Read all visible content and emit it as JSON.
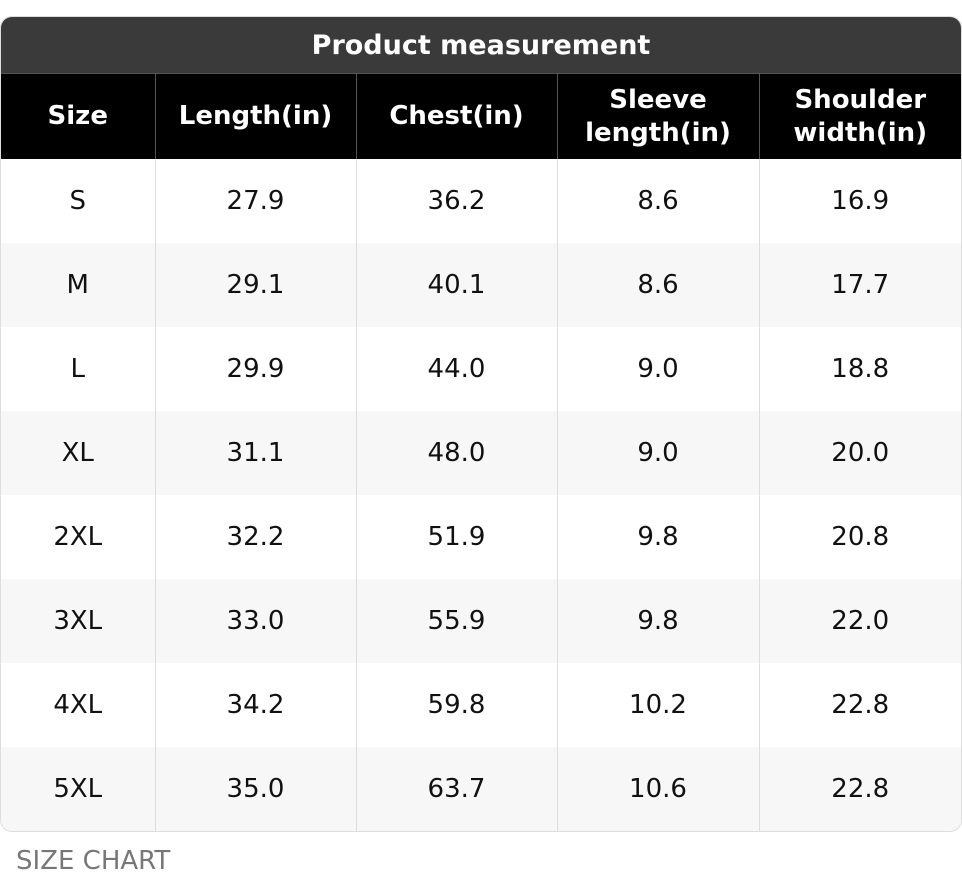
{
  "table": {
    "title": "Product measurement",
    "headers": [
      "Size",
      "Length(in)",
      "Chest(in)",
      "Sleeve length(in)",
      "Shoulder width(in)"
    ],
    "rows": [
      [
        "S",
        "27.9",
        "36.2",
        "8.6",
        "16.9"
      ],
      [
        "M",
        "29.1",
        "40.1",
        "8.6",
        "17.7"
      ],
      [
        "L",
        "29.9",
        "44.0",
        "9.0",
        "18.8"
      ],
      [
        "XL",
        "31.1",
        "48.0",
        "9.0",
        "20.0"
      ],
      [
        "2XL",
        "32.2",
        "51.9",
        "9.8",
        "20.8"
      ],
      [
        "3XL",
        "33.0",
        "55.9",
        "9.8",
        "22.0"
      ],
      [
        "4XL",
        "34.2",
        "59.8",
        "10.2",
        "22.8"
      ],
      [
        "5XL",
        "35.0",
        "63.7",
        "10.6",
        "22.8"
      ]
    ]
  },
  "caption": "SIZE CHART"
}
